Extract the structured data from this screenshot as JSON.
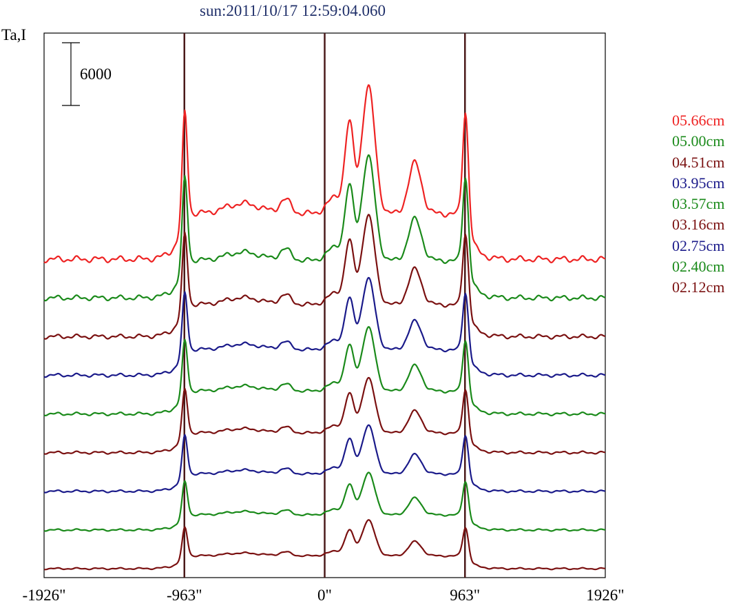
{
  "chart_data": {
    "type": "line",
    "title": "sun:2011/10/17 12:59:04.060",
    "ylabel": "Ta,I",
    "scale_bar_label": "6000",
    "scale_bar_value": 6000,
    "x_ticks": [
      "-1926\"",
      "-963\"",
      "0\"",
      "963\"",
      "1926\""
    ],
    "x_tick_values": [
      -1926,
      -963,
      0,
      963,
      1926
    ],
    "xlim": [
      -1926,
      1926
    ],
    "vertical_markers": [
      -963,
      0,
      963
    ],
    "stacked_offset_ta": 3700,
    "grid": false,
    "legend_position": "right",
    "series": [
      {
        "name": "05.66cm",
        "color": "#ee2222",
        "peak_scale": 1.0
      },
      {
        "name": "05.00cm",
        "color": "#1a8a1a",
        "peak_scale": 0.82
      },
      {
        "name": "04.51cm",
        "color": "#7a1010",
        "peak_scale": 0.7
      },
      {
        "name": "03.95cm",
        "color": "#1a1a8a",
        "peak_scale": 0.56
      },
      {
        "name": "03.57cm",
        "color": "#1a8a1a",
        "peak_scale": 0.5
      },
      {
        "name": "03.16cm",
        "color": "#7a1010",
        "peak_scale": 0.43
      },
      {
        "name": "02.75cm",
        "color": "#1a1a8a",
        "peak_scale": 0.38
      },
      {
        "name": "02.40cm",
        "color": "#1a8a1a",
        "peak_scale": 0.33
      },
      {
        "name": "02.12cm",
        "color": "#7a1010",
        "peak_scale": 0.28
      }
    ]
  }
}
